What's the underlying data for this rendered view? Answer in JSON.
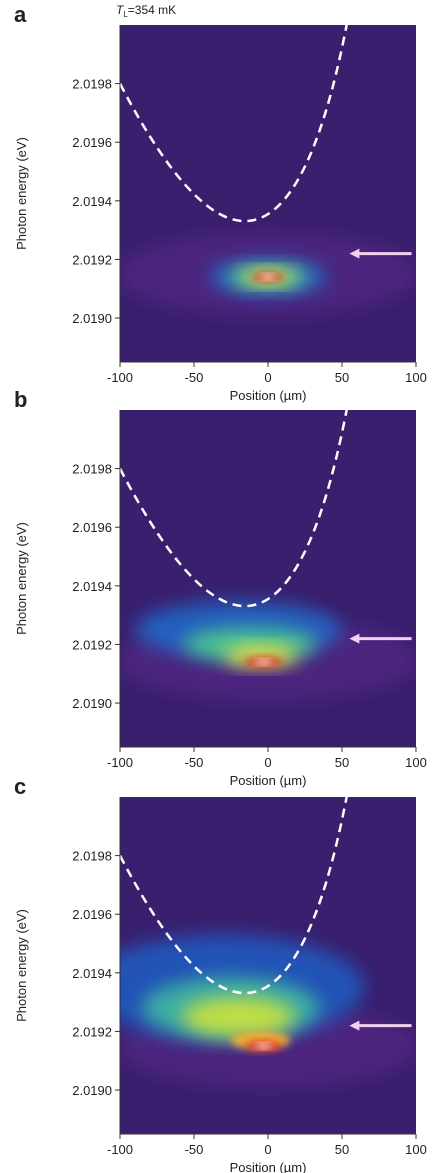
{
  "chart_data": [
    {
      "type": "heatmap",
      "panel": "a",
      "annotation": {
        "symbol": "T",
        "subscript": "L",
        "text": "=354 mK"
      },
      "xlabel": "Position (µm)",
      "ylabel": "Photon energy (eV)",
      "xlim": [
        -100,
        100
      ],
      "xticks": [
        -100,
        -50,
        0,
        50,
        100
      ],
      "ylim": [
        2.01885,
        2.02
      ],
      "yticks": [
        {
          "value": 2.019,
          "label": "2.0190"
        },
        2.0192,
        2.0194,
        2.0196,
        2.0198
      ]
    },
    {
      "type": "heatmap",
      "panel": "b",
      "xlabel": "Position (µm)",
      "ylabel": "Photon energy (eV)",
      "xlim": [
        -100,
        100
      ],
      "xticks": [
        -100,
        -50,
        0,
        50,
        100
      ],
      "ylim": [
        2.01885,
        2.02
      ],
      "yticks": [
        {
          "value": 2.019,
          "label": "2.0190"
        },
        2.0192,
        2.0194,
        2.0196,
        2.0198
      ]
    },
    {
      "type": "heatmap",
      "panel": "c",
      "xlabel": "Position (µm)",
      "ylabel": "Photon energy (eV)",
      "xlim": [
        -100,
        100
      ],
      "xticks": [
        -100,
        -50,
        0,
        50,
        100
      ],
      "ylim": [
        2.01885,
        2.02
      ],
      "yticks": [
        {
          "value": 2.019,
          "label": "2.0190"
        },
        2.0192,
        2.0194,
        2.0196,
        2.0198
      ]
    }
  ]
}
